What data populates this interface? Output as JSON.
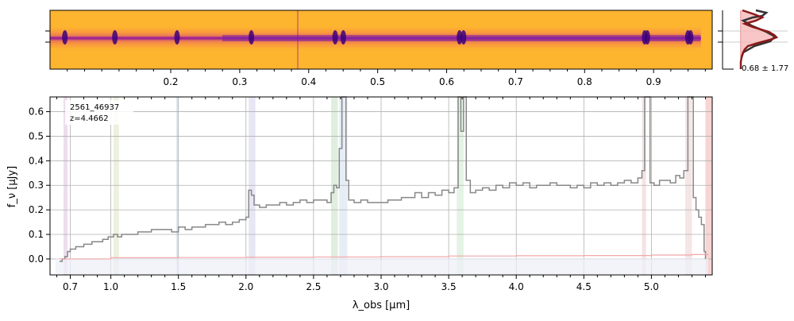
{
  "spectrum2d": {
    "top_ticks": [
      {
        "pos": 0.2,
        "label": "0.2"
      },
      {
        "pos": 0.3,
        "label": "0.3"
      },
      {
        "pos": 0.4,
        "label": "0.4"
      },
      {
        "pos": 0.5,
        "label": "0.5"
      },
      {
        "pos": 0.6,
        "label": "0.6"
      },
      {
        "pos": 0.7,
        "label": "0.7"
      },
      {
        "pos": 0.8,
        "label": "0.8"
      },
      {
        "pos": 0.9,
        "label": "0.9"
      }
    ],
    "colormap": "plasma",
    "emission_lines_um": [
      0.66,
      1.03,
      1.49,
      2.04,
      2.66,
      2.72,
      3.58,
      3.61,
      4.95,
      4.97,
      5.27,
      5.29
    ],
    "accent_colors": {
      "trace": "#3d007a",
      "background": "#fdb22f"
    }
  },
  "profile": {
    "label": "0.68 ± 1.77",
    "fill_color": "#f6b8b8",
    "line_color": "#8b1a1a",
    "model_color": "#333333"
  },
  "chart_data": {
    "type": "line",
    "annotation": [
      "2561_46937",
      "z=4.4662"
    ],
    "xlabel": "λ_obs [μm]",
    "ylabel": "f_ν [μJy]",
    "xlim": [
      0.55,
      5.45
    ],
    "ylim": [
      -0.065,
      0.66
    ],
    "x_ticks": [
      0.7,
      1.0,
      1.5,
      2.0,
      2.5,
      3.0,
      3.5,
      4.0,
      4.5,
      5.0
    ],
    "x_tick_labels": [
      "0.7",
      "1.0",
      "1.5",
      "2.0",
      "2.5",
      "3.0",
      "3.5",
      "4.0",
      "4.5",
      "5.0"
    ],
    "y_ticks": [
      0.0,
      0.1,
      0.2,
      0.3,
      0.4,
      0.5,
      0.6
    ],
    "y_tick_labels": [
      "0.0",
      "0.1",
      "0.2",
      "0.3",
      "0.4",
      "0.5",
      "0.6"
    ],
    "grid": true,
    "series": [
      {
        "color": "#888888",
        "style": "steps",
        "x": [
          0.62,
          0.64,
          0.66,
          0.68,
          0.7,
          0.72,
          0.74,
          0.76,
          0.78,
          0.8,
          0.83,
          0.86,
          0.9,
          0.94,
          0.98,
          1.02,
          1.05,
          1.08,
          1.12,
          1.16,
          1.2,
          1.25,
          1.3,
          1.35,
          1.4,
          1.45,
          1.5,
          1.55,
          1.6,
          1.65,
          1.7,
          1.75,
          1.8,
          1.85,
          1.9,
          1.95,
          2.0,
          2.02,
          2.04,
          2.06,
          2.1,
          2.15,
          2.2,
          2.25,
          2.3,
          2.35,
          2.4,
          2.45,
          2.5,
          2.55,
          2.6,
          2.63,
          2.65,
          2.67,
          2.69,
          2.71,
          2.72,
          2.74,
          2.76,
          2.8,
          2.85,
          2.9,
          2.95,
          3.0,
          3.05,
          3.1,
          3.15,
          3.2,
          3.25,
          3.3,
          3.35,
          3.4,
          3.45,
          3.5,
          3.54,
          3.57,
          3.59,
          3.61,
          3.63,
          3.66,
          3.7,
          3.75,
          3.8,
          3.85,
          3.9,
          3.95,
          4.0,
          4.05,
          4.1,
          4.15,
          4.2,
          4.25,
          4.3,
          4.35,
          4.4,
          4.45,
          4.5,
          4.55,
          4.6,
          4.65,
          4.7,
          4.75,
          4.8,
          4.85,
          4.9,
          4.93,
          4.95,
          4.97,
          4.99,
          5.02,
          5.06,
          5.1,
          5.14,
          5.18,
          5.21,
          5.24,
          5.27,
          5.29,
          5.31,
          5.33,
          5.35,
          5.37,
          5.39,
          5.4
        ],
        "y": [
          -0.01,
          0.0,
          0.01,
          0.03,
          0.04,
          0.04,
          0.05,
          0.05,
          0.05,
          0.06,
          0.06,
          0.07,
          0.07,
          0.08,
          0.09,
          0.1,
          0.09,
          0.1,
          0.1,
          0.1,
          0.11,
          0.11,
          0.12,
          0.12,
          0.12,
          0.11,
          0.13,
          0.12,
          0.13,
          0.13,
          0.14,
          0.14,
          0.15,
          0.14,
          0.15,
          0.16,
          0.17,
          0.28,
          0.26,
          0.22,
          0.21,
          0.22,
          0.22,
          0.23,
          0.22,
          0.23,
          0.24,
          0.23,
          0.24,
          0.24,
          0.23,
          0.27,
          0.3,
          0.29,
          0.45,
          0.66,
          0.66,
          0.32,
          0.24,
          0.23,
          0.24,
          0.23,
          0.23,
          0.23,
          0.24,
          0.24,
          0.25,
          0.25,
          0.27,
          0.25,
          0.27,
          0.26,
          0.28,
          0.27,
          0.29,
          0.66,
          0.52,
          0.66,
          0.32,
          0.27,
          0.28,
          0.29,
          0.28,
          0.3,
          0.29,
          0.31,
          0.3,
          0.31,
          0.29,
          0.3,
          0.3,
          0.31,
          0.3,
          0.3,
          0.29,
          0.3,
          0.29,
          0.31,
          0.3,
          0.31,
          0.3,
          0.31,
          0.32,
          0.31,
          0.33,
          0.36,
          0.66,
          0.66,
          0.31,
          0.3,
          0.32,
          0.32,
          0.31,
          0.34,
          0.33,
          0.36,
          0.66,
          0.66,
          0.25,
          0.2,
          0.17,
          0.14,
          0.03,
          0.0
        ]
      },
      {
        "color": "#f2a8a8",
        "style": "steps",
        "x": [
          0.62,
          1.0,
          1.5,
          2.0,
          2.5,
          3.0,
          3.5,
          4.0,
          4.5,
          5.0,
          5.3,
          5.42
        ],
        "y": [
          0.0,
          0.005,
          0.006,
          0.007,
          0.008,
          0.009,
          0.012,
          0.013,
          0.014,
          0.016,
          0.018,
          0.02
        ]
      }
    ],
    "line_bands": [
      {
        "x0": 0.65,
        "x1": 0.68,
        "color": "#d8b4d8"
      },
      {
        "x0": 1.02,
        "x1": 1.06,
        "color": "#d4e0b8"
      },
      {
        "x0": 1.485,
        "x1": 1.5,
        "color": "#aac4d8"
      },
      {
        "x0": 2.02,
        "x1": 2.07,
        "color": "#c8c8e8"
      },
      {
        "x0": 2.63,
        "x1": 2.68,
        "color": "#b8dcb8"
      },
      {
        "x0": 2.69,
        "x1": 2.75,
        "color": "#c8d8e8"
      },
      {
        "x0": 3.56,
        "x1": 3.61,
        "color": "#c4e4c4"
      },
      {
        "x0": 4.93,
        "x1": 4.96,
        "color": "#e8c0c4"
      },
      {
        "x0": 5.25,
        "x1": 5.3,
        "color": "#e8c8c8"
      },
      {
        "x0": 5.4,
        "x1": 5.45,
        "color": "#f2a0a0"
      }
    ]
  }
}
